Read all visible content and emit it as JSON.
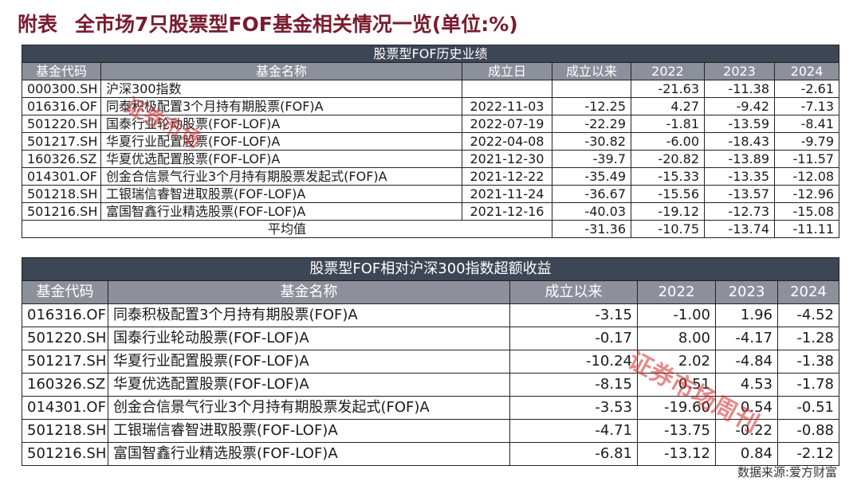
{
  "title": {
    "prefix": "附表",
    "text": "全市场7只股票型FOF基金相关情况一览(单位:%)"
  },
  "table1": {
    "section_title": "股票型FOF历史业绩",
    "headers": [
      "基金代码",
      "基金名称",
      "成立日",
      "成立以来",
      "2022",
      "2023",
      "2024"
    ],
    "rows": [
      {
        "code": "000300.SH",
        "name": "沪深300指数",
        "date": "",
        "since": "",
        "y2022": "-21.63",
        "y2023": "-11.38",
        "y2024": "-2.61"
      },
      {
        "code": "016316.OF",
        "name": "同泰积极配置3个月持有期股票(FOF)A",
        "date": "2022-11-03",
        "since": "-12.25",
        "y2022": "4.27",
        "y2023": "-9.42",
        "y2024": "-7.13"
      },
      {
        "code": "501220.SH",
        "name": "国泰行业轮动股票(FOF-LOF)A",
        "date": "2022-07-19",
        "since": "-22.29",
        "y2022": "-1.81",
        "y2023": "-13.59",
        "y2024": "-8.41"
      },
      {
        "code": "501217.SH",
        "name": "华夏行业配置股票(FOF-LOF)A",
        "date": "2022-04-08",
        "since": "-30.82",
        "y2022": "-6.00",
        "y2023": "-18.43",
        "y2024": "-9.79"
      },
      {
        "code": "160326.SZ",
        "name": "华夏优选配置股票(FOF-LOF)A",
        "date": "2021-12-30",
        "since": "-39.7",
        "y2022": "-20.82",
        "y2023": "-13.89",
        "y2024": "-11.57"
      },
      {
        "code": "014301.OF",
        "name": "创金合信景气行业3个月持有期股票发起式(FOF)A",
        "date": "2021-12-22",
        "since": "-35.49",
        "y2022": "-15.33",
        "y2023": "-13.35",
        "y2024": "-12.08"
      },
      {
        "code": "501218.SH",
        "name": "工银瑞信睿智进取股票(FOF-LOF)A",
        "date": "2021-11-24",
        "since": "-36.67",
        "y2022": "-15.56",
        "y2023": "-13.57",
        "y2024": "-12.96"
      },
      {
        "code": "501216.SH",
        "name": "富国智鑫行业精选股票(FOF-LOF)A",
        "date": "2021-12-16",
        "since": "-40.03",
        "y2022": "-19.12",
        "y2023": "-12.73",
        "y2024": "-15.08"
      }
    ],
    "average": {
      "label": "平均值",
      "since": "-31.36",
      "y2022": "-10.75",
      "y2023": "-13.74",
      "y2024": "-11.11"
    }
  },
  "table2": {
    "section_title": "股票型FOF相对沪深300指数超额收益",
    "headers": [
      "基金代码",
      "基金名称",
      "成立以来",
      "2022",
      "2023",
      "2024"
    ],
    "rows": [
      {
        "code": "016316.OF",
        "name": "同泰积极配置3个月持有期股票(FOF)A",
        "since": "-3.15",
        "y2022": "-1.00",
        "y2023": "1.96",
        "y2024": "-4.52"
      },
      {
        "code": "501220.SH",
        "name": "国泰行业轮动股票(FOF-LOF)A",
        "since": "-0.17",
        "y2022": "8.00",
        "y2023": "-4.17",
        "y2024": "-1.28"
      },
      {
        "code": "501217.SH",
        "name": "华夏行业配置股票(FOF-LOF)A",
        "since": "-10.24",
        "y2022": "2.02",
        "y2023": "-4.84",
        "y2024": "-1.38"
      },
      {
        "code": "160326.SZ",
        "name": "华夏优选配置股票(FOF-LOF)A",
        "since": "-8.15",
        "y2022": "0.51",
        "y2023": "4.53",
        "y2024": "-1.78"
      },
      {
        "code": "014301.OF",
        "name": "创金合信景气行业3个月持有期股票发起式(FOF)A",
        "since": "-3.53",
        "y2022": "-19.60",
        "y2023": "0.54",
        "y2024": "-0.51"
      },
      {
        "code": "501218.SH",
        "name": "工银瑞信睿智进取股票(FOF-LOF)A",
        "since": "-4.71",
        "y2022": "-13.75",
        "y2023": "-0.22",
        "y2024": "-0.88"
      },
      {
        "code": "501216.SH",
        "name": "富国智鑫行业精选股票(FOF-LOF)A",
        "since": "-6.81",
        "y2022": "-13.12",
        "y2023": "0.84",
        "y2024": "-2.12"
      }
    ]
  },
  "source": "数据来源:爱方财富",
  "watermarks": [
    "证券市场",
    "证券市场周刊"
  ],
  "colors": {
    "title": "#7a1b2e",
    "section_header": "#3d4655",
    "column_header": "#8c909a",
    "watermark": "#d22828"
  }
}
